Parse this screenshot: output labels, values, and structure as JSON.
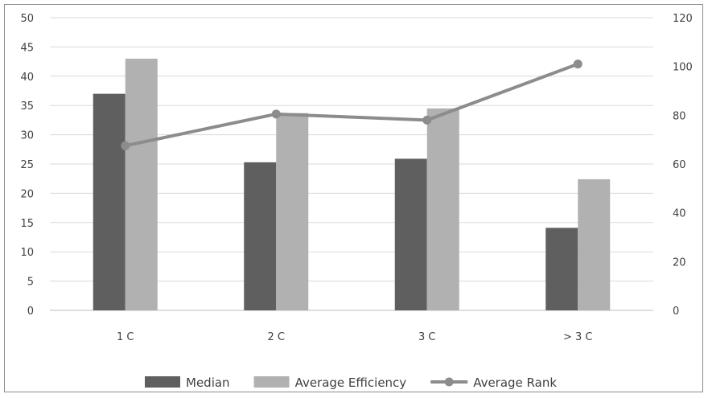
{
  "chart_data": {
    "type": "bar",
    "categories": [
      "1 C",
      "2 C",
      "3 C",
      "> 3 C"
    ],
    "series": [
      {
        "name": "Median",
        "kind": "bar",
        "axis": "left",
        "color": "#5f5f5f",
        "values": [
          37,
          25.3,
          25.9,
          14.1
        ]
      },
      {
        "name": "Average Efficiency",
        "kind": "bar",
        "axis": "left",
        "color": "#b1b1b1",
        "values": [
          43,
          33.7,
          34.5,
          22.4
        ]
      },
      {
        "name": "Average Rank",
        "kind": "line",
        "axis": "right",
        "color": "#8c8c8c",
        "values": [
          67.5,
          80.5,
          78,
          101
        ]
      }
    ],
    "y_left": {
      "min": 0,
      "max": 50,
      "ticks": [
        0,
        5,
        10,
        15,
        20,
        25,
        30,
        35,
        40,
        45,
        50
      ]
    },
    "y_right": {
      "min": 0,
      "max": 120,
      "ticks": [
        0,
        20,
        40,
        60,
        80,
        100,
        120
      ]
    },
    "grid": true,
    "legend_position": "bottom"
  }
}
